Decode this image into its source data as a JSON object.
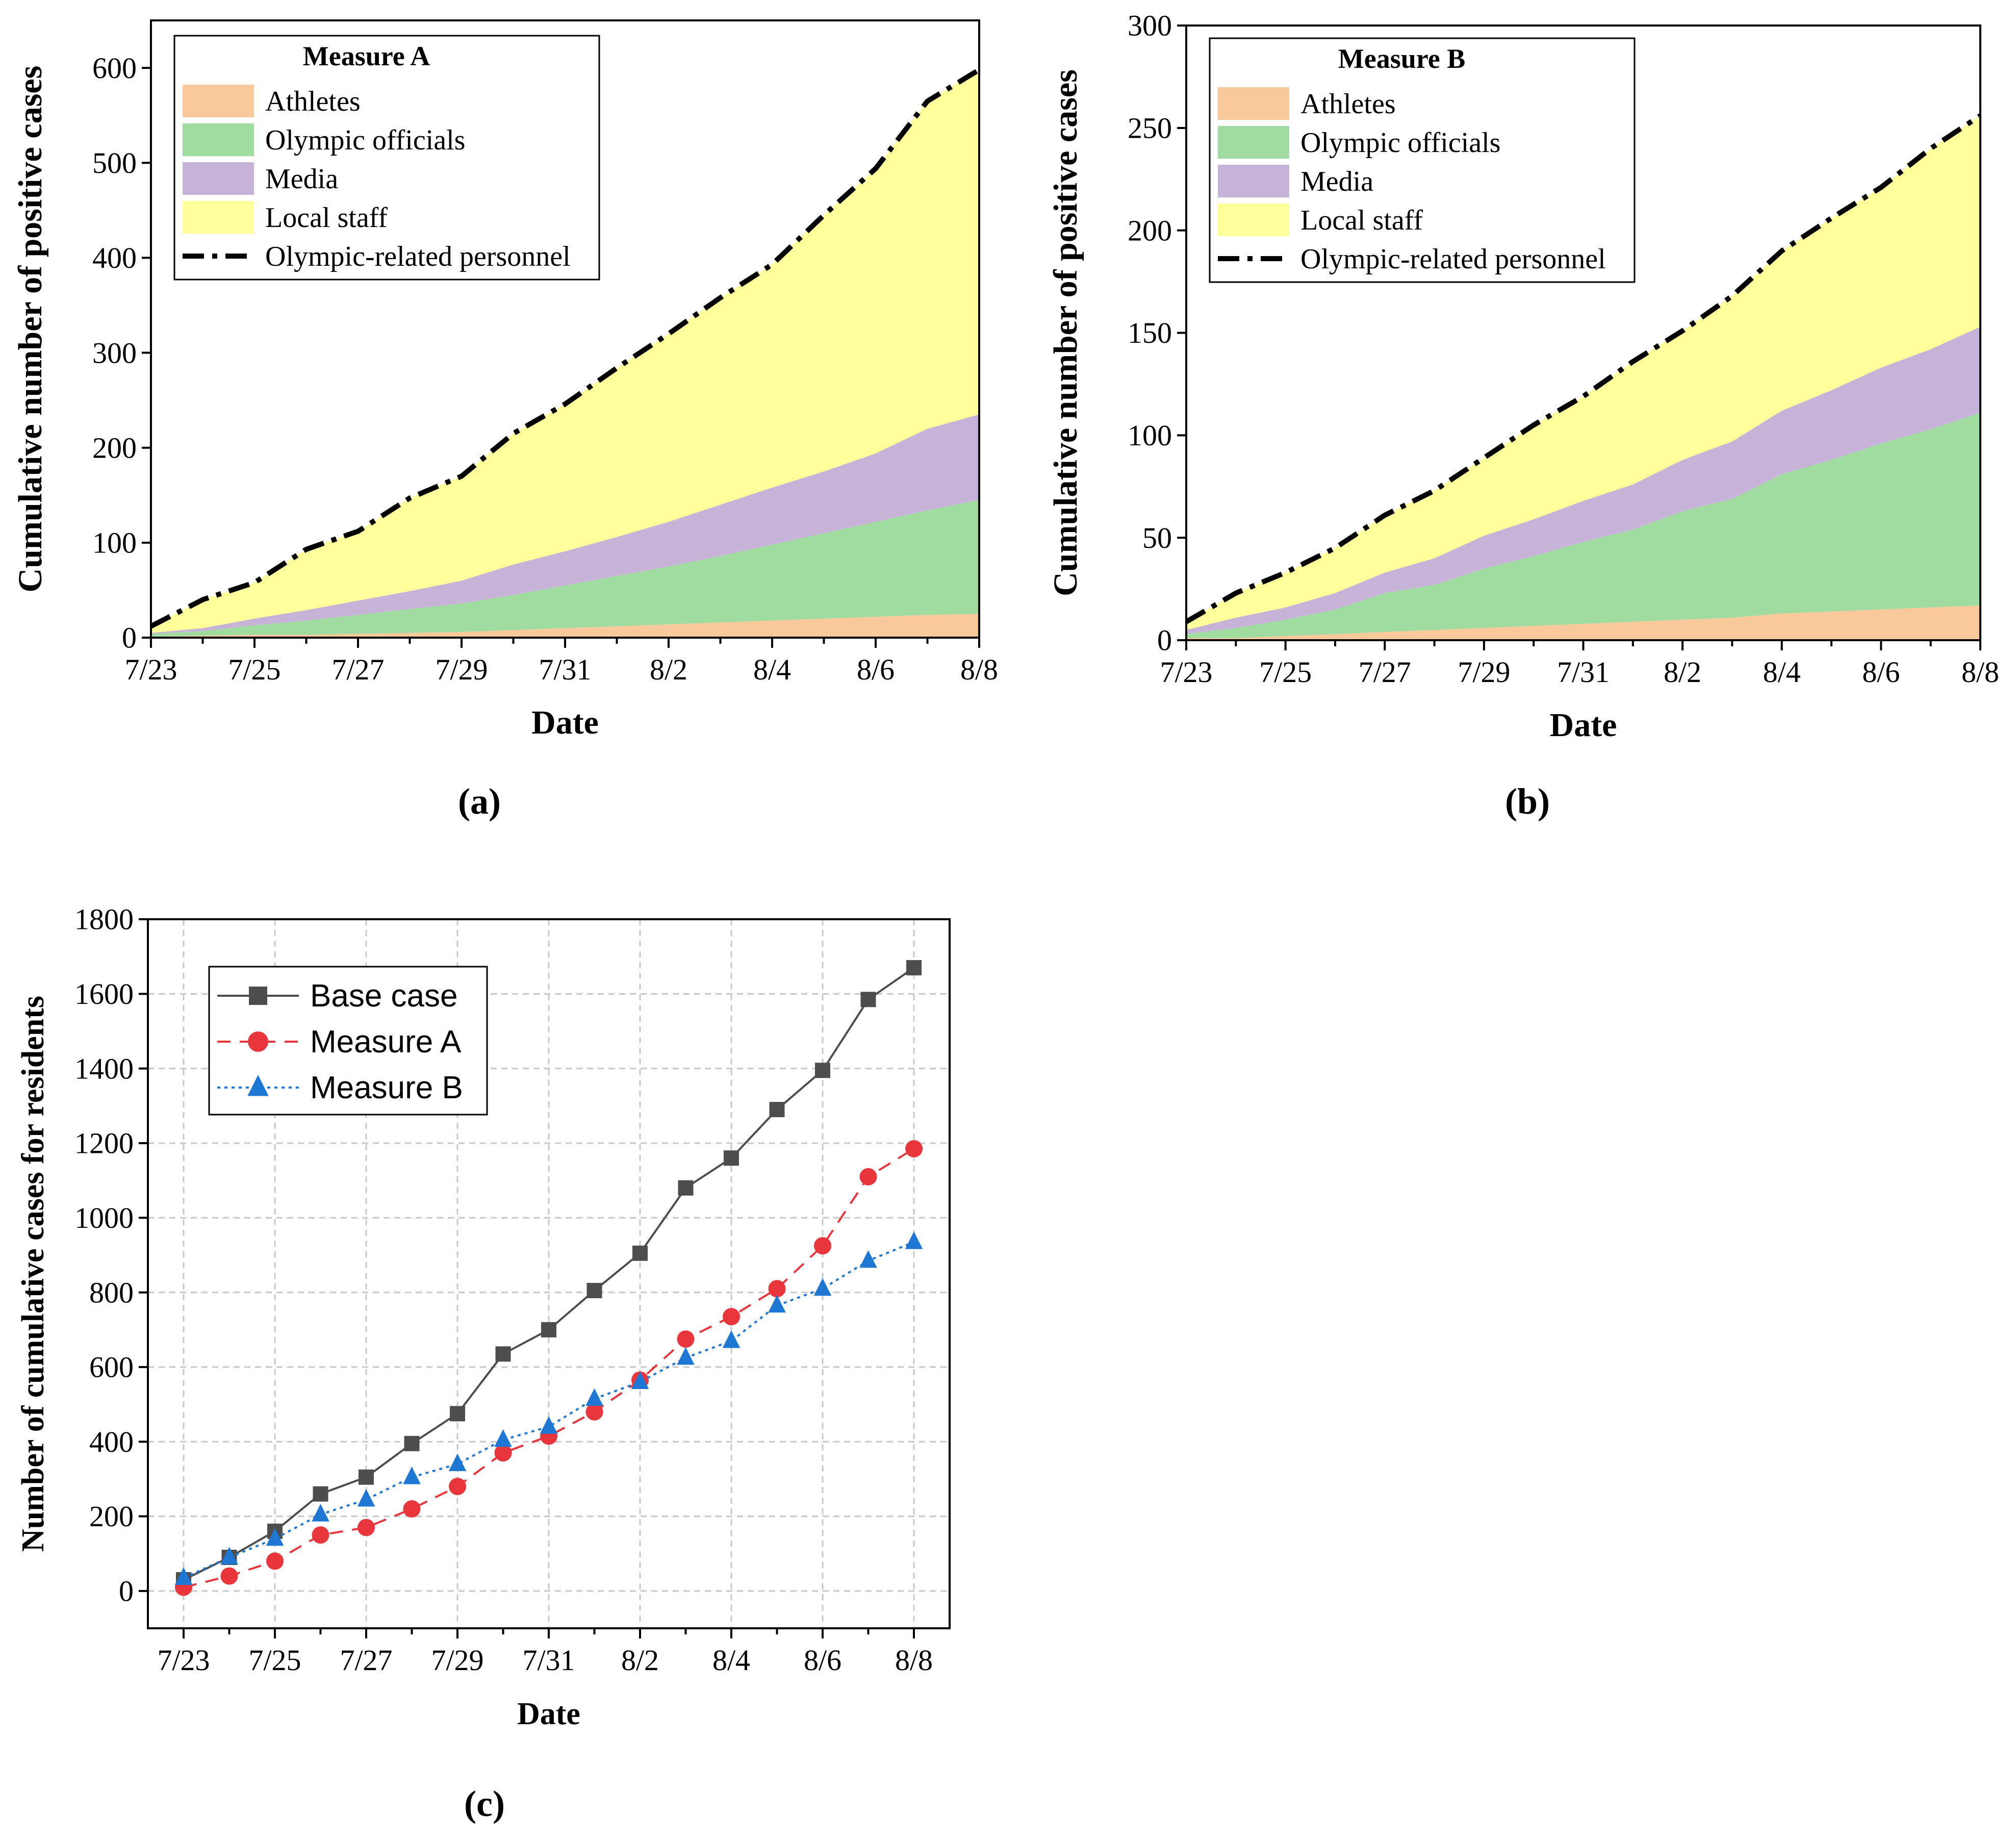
{
  "chart_data": [
    {
      "panel_label": "(a)",
      "type": "area",
      "stacked": true,
      "xlabel": "Date",
      "ylabel": "Cumulative number of positive cases",
      "ylim": [
        0,
        650
      ],
      "yticks": [
        0,
        100,
        200,
        300,
        400,
        500,
        600
      ],
      "x": [
        "7/23",
        "7/24",
        "7/25",
        "7/26",
        "7/27",
        "7/28",
        "7/29",
        "7/30",
        "7/31",
        "8/1",
        "8/2",
        "8/3",
        "8/4",
        "8/5",
        "8/6",
        "8/7",
        "8/8"
      ],
      "xtick_labels": [
        "7/23",
        "7/25",
        "7/27",
        "7/29",
        "7/31",
        "8/2",
        "8/4",
        "8/6",
        "8/8"
      ],
      "legend": {
        "title": "Measure A",
        "position": "top-left"
      },
      "series": [
        {
          "name": "Athletes",
          "color": "#F9C89B",
          "values": [
            1,
            2,
            3,
            3,
            4,
            5,
            6,
            8,
            10,
            12,
            14,
            16,
            18,
            20,
            22,
            24,
            25
          ]
        },
        {
          "name": "Olympic officials",
          "color": "#A0DBA0",
          "values": [
            3,
            5,
            10,
            15,
            20,
            25,
            30,
            37,
            45,
            53,
            61,
            70,
            80,
            90,
            100,
            110,
            120
          ]
        },
        {
          "name": "Media",
          "color": "#C7B3D8",
          "values": [
            1,
            3,
            7,
            11,
            15,
            19,
            24,
            32,
            36,
            41,
            47,
            54,
            60,
            65,
            72,
            86,
            90
          ]
        },
        {
          "name": "Local staff",
          "color": "#FFFF9C",
          "values": [
            7,
            30,
            38,
            64,
            73,
            98,
            110,
            138,
            155,
            178,
            198,
            218,
            235,
            270,
            300,
            345,
            363
          ]
        },
        {
          "name": "Olympic-related personnel",
          "type": "line",
          "style": "dash-dot",
          "color": "#000000",
          "values": [
            12,
            40,
            58,
            93,
            112,
            147,
            170,
            215,
            246,
            284,
            320,
            358,
            393,
            445,
            494,
            565,
            598
          ]
        }
      ]
    },
    {
      "panel_label": "(b)",
      "type": "area",
      "stacked": true,
      "xlabel": "Date",
      "ylabel": "Cumulative number of positive cases",
      "ylim": [
        0,
        300
      ],
      "yticks": [
        0,
        50,
        100,
        150,
        200,
        250,
        300
      ],
      "x": [
        "7/23",
        "7/24",
        "7/25",
        "7/26",
        "7/27",
        "7/28",
        "7/29",
        "7/30",
        "7/31",
        "8/1",
        "8/2",
        "8/3",
        "8/4",
        "8/5",
        "8/6",
        "8/7",
        "8/8"
      ],
      "xtick_labels": [
        "7/23",
        "7/25",
        "7/27",
        "7/29",
        "7/31",
        "8/2",
        "8/4",
        "8/6",
        "8/8"
      ],
      "legend": {
        "title": "Measure B",
        "position": "top-left"
      },
      "series": [
        {
          "name": "Athletes",
          "color": "#F9C89B",
          "values": [
            1,
            1,
            2,
            3,
            4,
            5,
            6,
            7,
            8,
            9,
            10,
            11,
            13,
            14,
            15,
            16,
            17
          ]
        },
        {
          "name": "Olympic officials",
          "color": "#A0DBA0",
          "values": [
            2,
            5,
            8,
            12,
            19,
            22,
            29,
            34,
            40,
            45,
            53,
            58,
            68,
            74,
            81,
            87,
            94
          ]
        },
        {
          "name": "Media",
          "color": "#C7B3D8",
          "values": [
            2,
            5,
            6,
            8,
            10,
            13,
            16,
            18,
            20,
            22,
            25,
            28,
            31,
            34,
            37,
            39,
            42
          ]
        },
        {
          "name": "Local staff",
          "color": "#FFFF9C",
          "values": [
            4,
            12,
            17,
            22,
            28,
            33,
            38,
            46,
            51,
            60,
            63,
            71,
            78,
            84,
            88,
            98,
            103
          ]
        },
        {
          "name": "Olympic-related personnel",
          "type": "line",
          "style": "dash-dot",
          "color": "#000000",
          "values": [
            9,
            23,
            33,
            45,
            61,
            73,
            89,
            105,
            119,
            136,
            151,
            168,
            190,
            206,
            221,
            240,
            256
          ]
        }
      ]
    },
    {
      "panel_label": "(c)",
      "type": "line",
      "xlabel": "Date",
      "ylabel": "Number of cumulative cases for residents",
      "ylim": [
        -100,
        1800
      ],
      "yticks": [
        0,
        200,
        400,
        600,
        800,
        1000,
        1200,
        1400,
        1600,
        1800
      ],
      "grid": true,
      "x": [
        "7/23",
        "7/24",
        "7/25",
        "7/26",
        "7/27",
        "7/28",
        "7/29",
        "7/30",
        "7/31",
        "8/1",
        "8/2",
        "8/3",
        "8/4",
        "8/5",
        "8/6",
        "8/7",
        "8/8"
      ],
      "xtick_labels": [
        "7/23",
        "7/25",
        "7/27",
        "7/29",
        "7/31",
        "8/2",
        "8/4",
        "8/6",
        "8/8"
      ],
      "legend": {
        "position": "top-left"
      },
      "series": [
        {
          "name": "Base case",
          "color": "#4D4D4D",
          "marker": "square",
          "style": "solid",
          "values": [
            30,
            90,
            160,
            260,
            305,
            395,
            475,
            635,
            700,
            805,
            905,
            1080,
            1160,
            1290,
            1395,
            1585,
            1670
          ]
        },
        {
          "name": "Measure A",
          "color": "#E8363C",
          "marker": "circle",
          "style": "dashed",
          "values": [
            10,
            40,
            80,
            150,
            170,
            220,
            280,
            370,
            415,
            480,
            565,
            675,
            735,
            810,
            925,
            1110,
            1185
          ]
        },
        {
          "name": "Measure B",
          "color": "#1F77D4",
          "marker": "triangle",
          "style": "dotted",
          "values": [
            35,
            90,
            140,
            205,
            245,
            305,
            340,
            405,
            440,
            515,
            560,
            625,
            670,
            765,
            810,
            885,
            935
          ]
        }
      ]
    }
  ]
}
